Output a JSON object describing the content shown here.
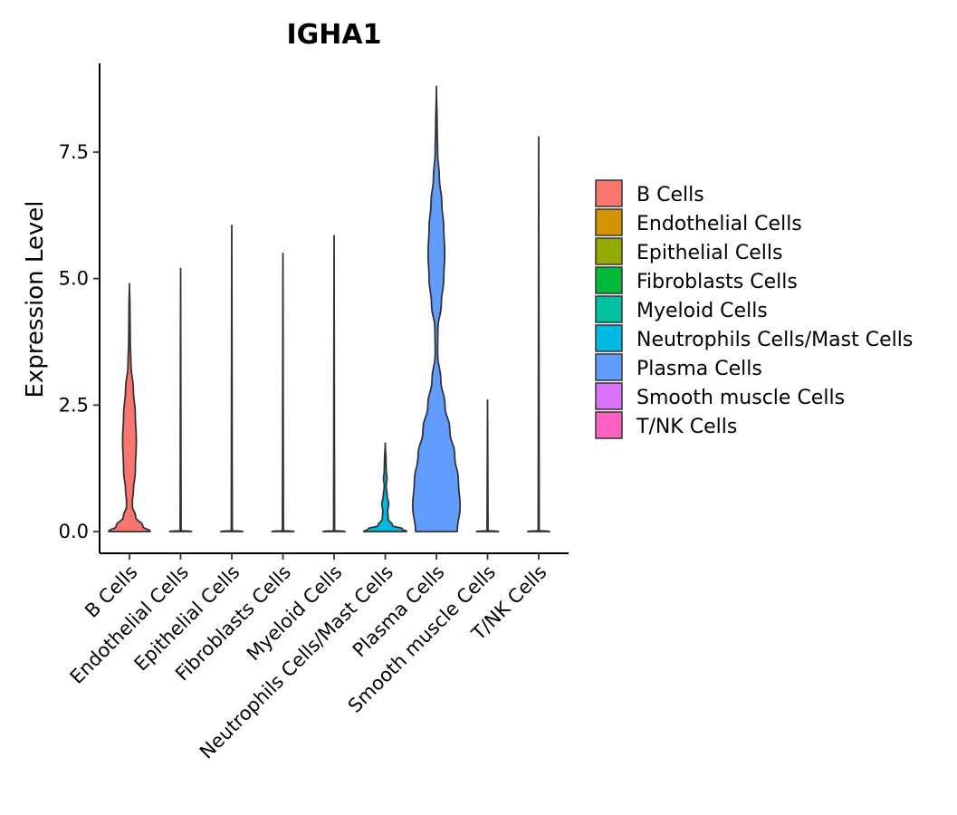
{
  "chart_data": {
    "type": "violin",
    "title": "IGHA1",
    "xlabel": "",
    "ylabel": "Expression Level",
    "ylim": [
      -0.7,
      9.1
    ],
    "yticks": [
      0.0,
      2.5,
      5.0,
      7.5
    ],
    "ytick_labels": [
      "0.0",
      "2.5",
      "5.0",
      "7.5"
    ],
    "grid": false,
    "legend_position": "right",
    "categories": [
      "B Cells",
      "Endothelial Cells",
      "Epithelial Cells",
      "Fibroblasts Cells",
      "Myeloid Cells",
      "Neutrophils Cells/Mast Cells",
      "Plasma Cells",
      "Smooth muscle Cells",
      "T/NK Cells"
    ],
    "colors": [
      "#F8766D",
      "#D39200",
      "#93AA00",
      "#00BA38",
      "#00C19F",
      "#00B9E3",
      "#619CFF",
      "#DB72FB",
      "#FF61C3"
    ],
    "series": [
      {
        "name": "B Cells",
        "max": 4.9,
        "profile": [
          [
            0.0,
            0.85
          ],
          [
            0.1,
            0.55
          ],
          [
            0.3,
            0.25
          ],
          [
            0.5,
            0.12
          ],
          [
            0.6,
            0.12
          ],
          [
            0.8,
            0.16
          ],
          [
            1.2,
            0.24
          ],
          [
            1.8,
            0.28
          ],
          [
            2.3,
            0.24
          ],
          [
            2.8,
            0.16
          ],
          [
            3.3,
            0.06
          ],
          [
            3.8,
            0.03
          ],
          [
            4.4,
            0.02
          ],
          [
            4.9,
            0.0
          ]
        ]
      },
      {
        "name": "Endothelial Cells",
        "max": 5.2,
        "profile": [
          [
            0.0,
            0.45
          ],
          [
            0.02,
            0.02
          ],
          [
            5.2,
            0.0
          ]
        ]
      },
      {
        "name": "Epithelial Cells",
        "max": 6.05,
        "profile": [
          [
            0.0,
            0.45
          ],
          [
            0.02,
            0.02
          ],
          [
            6.05,
            0.0
          ]
        ]
      },
      {
        "name": "Fibroblasts Cells",
        "max": 5.5,
        "profile": [
          [
            0.0,
            0.45
          ],
          [
            0.02,
            0.02
          ],
          [
            5.5,
            0.0
          ]
        ]
      },
      {
        "name": "Myeloid Cells",
        "max": 5.85,
        "profile": [
          [
            0.0,
            0.45
          ],
          [
            0.02,
            0.02
          ],
          [
            5.85,
            0.0
          ]
        ]
      },
      {
        "name": "Neutrophils Cells/Mast Cells",
        "max": 1.75,
        "profile": [
          [
            0.0,
            0.88
          ],
          [
            0.05,
            0.7
          ],
          [
            0.12,
            0.3
          ],
          [
            0.25,
            0.12
          ],
          [
            0.4,
            0.1
          ],
          [
            0.55,
            0.14
          ],
          [
            0.7,
            0.08
          ],
          [
            0.9,
            0.04
          ],
          [
            1.05,
            0.07
          ],
          [
            1.2,
            0.04
          ],
          [
            1.4,
            0.03
          ],
          [
            1.75,
            0.0
          ]
        ]
      },
      {
        "name": "Plasma Cells",
        "max": 8.8,
        "profile": [
          [
            0.0,
            0.85
          ],
          [
            0.5,
            0.97
          ],
          [
            1.0,
            0.9
          ],
          [
            1.5,
            0.75
          ],
          [
            2.0,
            0.55
          ],
          [
            2.5,
            0.35
          ],
          [
            3.0,
            0.18
          ],
          [
            3.5,
            0.05
          ],
          [
            4.0,
            0.06
          ],
          [
            4.5,
            0.2
          ],
          [
            5.0,
            0.3
          ],
          [
            5.5,
            0.34
          ],
          [
            6.0,
            0.3
          ],
          [
            6.5,
            0.22
          ],
          [
            7.0,
            0.12
          ],
          [
            7.5,
            0.05
          ],
          [
            8.0,
            0.03
          ],
          [
            8.8,
            0.0
          ]
        ]
      },
      {
        "name": "Smooth muscle Cells",
        "max": 2.6,
        "profile": [
          [
            0.0,
            0.45
          ],
          [
            0.02,
            0.02
          ],
          [
            2.6,
            0.0
          ]
        ]
      },
      {
        "name": "T/NK Cells",
        "max": 7.8,
        "profile": [
          [
            0.0,
            0.45
          ],
          [
            0.02,
            0.02
          ],
          [
            7.8,
            0.0
          ]
        ]
      }
    ]
  }
}
